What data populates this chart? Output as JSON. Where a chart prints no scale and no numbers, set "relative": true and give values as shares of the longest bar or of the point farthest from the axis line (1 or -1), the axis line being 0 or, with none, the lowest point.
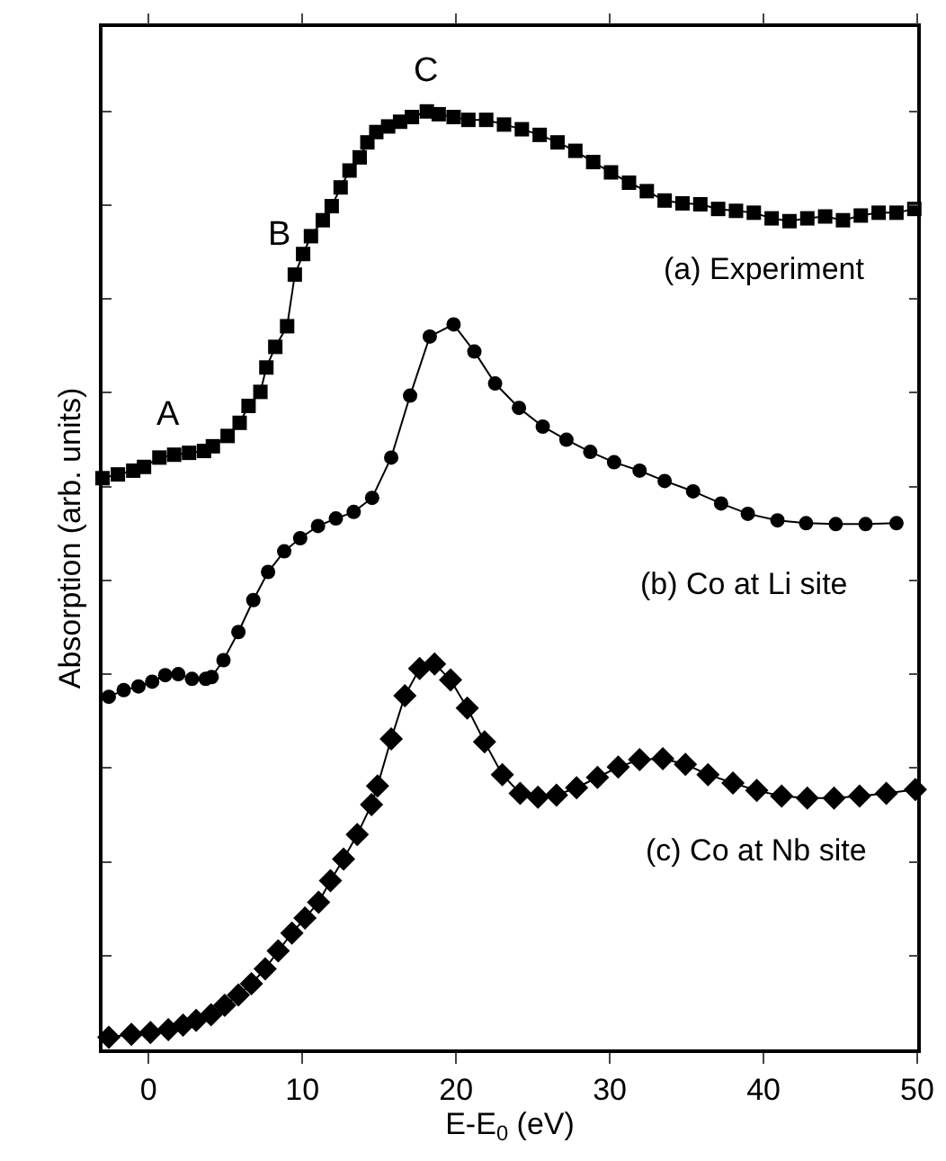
{
  "chart_data": {
    "type": "line",
    "relative": true,
    "xlabel": "E-E$_{0}$ (eV)",
    "ylabel": "Absorption (arb. units)",
    "xlim": [
      -3,
      50
    ],
    "xticks": [
      0,
      10,
      20,
      30,
      40,
      50
    ],
    "tick_labels": "x",
    "legend": false,
    "line_style": "solid",
    "annotations": [
      {
        "text": "A",
        "x": 1.3,
        "y": 0.634
      },
      {
        "text": "B",
        "x": 9.5,
        "y": 0.826
      },
      {
        "text": "C",
        "x": 18.1,
        "y": 1.0
      }
    ],
    "series": [
      {
        "name": "(a) Experiment",
        "color": "#000000",
        "marker": "square",
        "x": [
          -3.0,
          -2.0,
          -1.0,
          -0.3,
          0.7,
          1.66,
          2.63,
          3.6,
          4.18,
          5.14,
          5.92,
          6.5,
          7.27,
          7.66,
          8.24,
          9.01,
          9.51,
          10.05,
          10.56,
          11.33,
          11.91,
          12.49,
          13.07,
          13.73,
          14.23,
          14.81,
          15.58,
          16.36,
          17.13,
          18.1,
          18.87,
          19.84,
          20.8,
          21.96,
          23.12,
          24.28,
          25.44,
          26.6,
          27.76,
          28.92,
          30.08,
          31.25,
          32.41,
          33.57,
          34.73,
          35.89,
          37.05,
          38.21,
          39.37,
          40.53,
          41.69,
          42.85,
          44.01,
          45.17,
          46.33,
          47.49,
          48.65,
          49.81
        ],
        "values": [
          0.609,
          0.613,
          0.617,
          0.621,
          0.631,
          0.634,
          0.636,
          0.638,
          0.643,
          0.654,
          0.668,
          0.686,
          0.701,
          0.727,
          0.749,
          0.771,
          0.826,
          0.848,
          0.867,
          0.884,
          0.899,
          0.919,
          0.937,
          0.951,
          0.967,
          0.978,
          0.984,
          0.989,
          0.994,
          1.0,
          0.997,
          0.994,
          0.991,
          0.991,
          0.986,
          0.981,
          0.975,
          0.967,
          0.958,
          0.946,
          0.935,
          0.924,
          0.915,
          0.905,
          0.902,
          0.901,
          0.896,
          0.894,
          0.892,
          0.886,
          0.883,
          0.886,
          0.888,
          0.884,
          0.889,
          0.892,
          0.892,
          0.896
        ]
      },
      {
        "name": "(b) Co at Li site",
        "color": "#000000",
        "marker": "circle",
        "x": [
          -2.59,
          -1.62,
          -0.66,
          0.23,
          1.08,
          1.93,
          2.82,
          3.71,
          4.1,
          4.87,
          5.84,
          6.81,
          7.77,
          8.82,
          9.86,
          11.02,
          12.18,
          13.34,
          14.54,
          15.78,
          17.01,
          18.29,
          19.84,
          21.19,
          22.54,
          24.09,
          25.64,
          27.18,
          28.73,
          30.28,
          31.94,
          33.57,
          35.42,
          37.24,
          38.98,
          40.91,
          42.77,
          44.7,
          46.64,
          48.65
        ],
        "values": [
          0.376,
          0.383,
          0.387,
          0.392,
          0.399,
          0.4,
          0.395,
          0.395,
          0.397,
          0.415,
          0.445,
          0.479,
          0.509,
          0.531,
          0.545,
          0.558,
          0.566,
          0.573,
          0.588,
          0.631,
          0.697,
          0.76,
          0.773,
          0.744,
          0.71,
          0.684,
          0.664,
          0.65,
          0.637,
          0.626,
          0.617,
          0.606,
          0.595,
          0.582,
          0.571,
          0.564,
          0.561,
          0.56,
          0.56,
          0.561
        ]
      },
      {
        "name": "(c) Co at Nb site",
        "color": "#000000",
        "marker": "diamond",
        "x": [
          -2.59,
          -1.12,
          0.12,
          1.28,
          2.24,
          3.09,
          4.06,
          4.95,
          5.84,
          6.69,
          7.58,
          8.43,
          9.32,
          10.17,
          11.06,
          11.83,
          12.68,
          13.57,
          14.5,
          14.89,
          15.78,
          16.67,
          17.63,
          18.6,
          19.64,
          20.73,
          21.85,
          23.01,
          24.17,
          25.33,
          26.53,
          27.84,
          29.2,
          30.55,
          31.94,
          33.45,
          34.92,
          36.39,
          38.01,
          39.56,
          41.18,
          42.85,
          44.59,
          46.25,
          47.99,
          49.88
        ],
        "values": [
          0.013,
          0.016,
          0.018,
          0.021,
          0.026,
          0.031,
          0.037,
          0.047,
          0.058,
          0.07,
          0.086,
          0.105,
          0.124,
          0.14,
          0.157,
          0.18,
          0.203,
          0.229,
          0.261,
          0.281,
          0.331,
          0.377,
          0.406,
          0.411,
          0.394,
          0.364,
          0.328,
          0.293,
          0.273,
          0.269,
          0.271,
          0.279,
          0.29,
          0.301,
          0.309,
          0.31,
          0.304,
          0.293,
          0.284,
          0.276,
          0.27,
          0.268,
          0.268,
          0.27,
          0.273,
          0.277
        ]
      }
    ]
  }
}
